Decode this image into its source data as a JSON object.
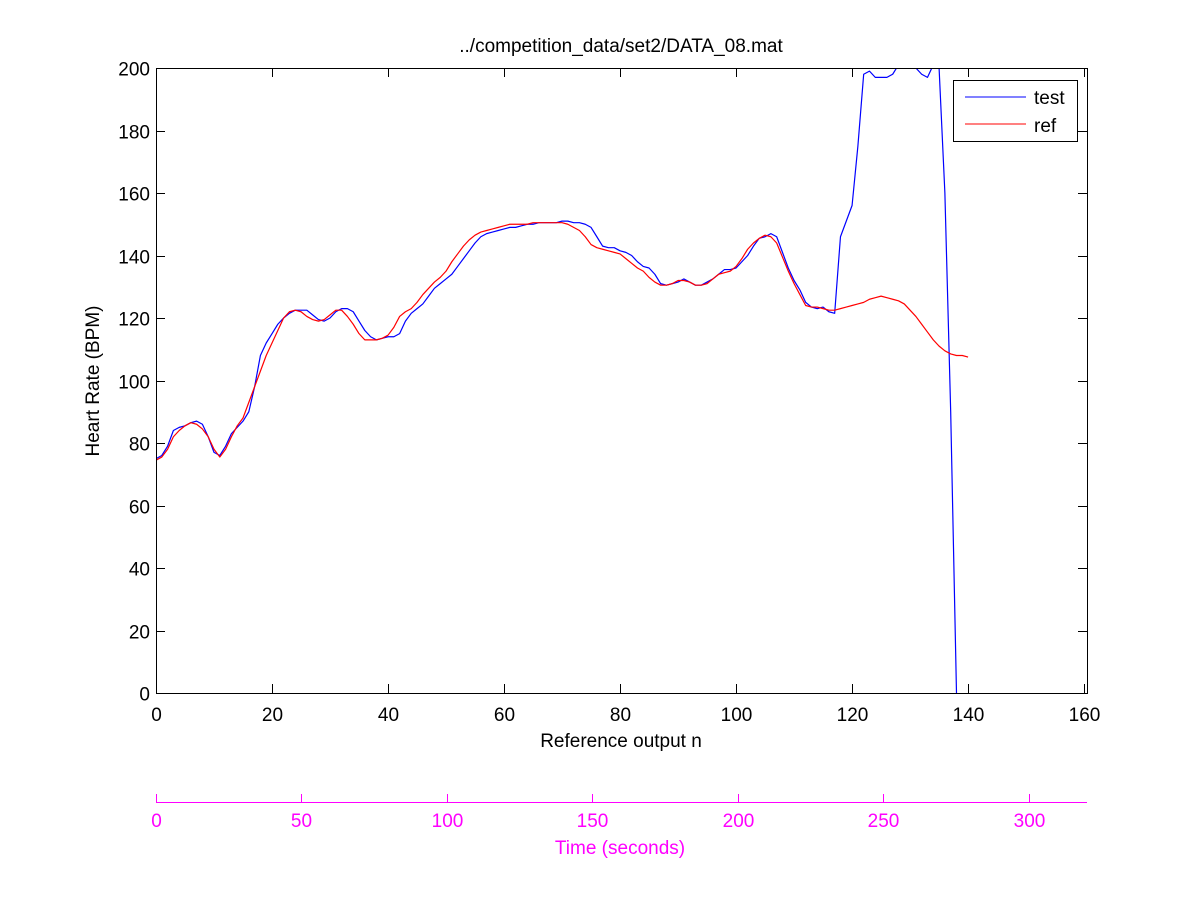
{
  "chart_data": {
    "type": "line",
    "title": "../competition_data/set2/DATA_08.mat",
    "xlabel": "Reference output n",
    "ylabel": "Heart Rate (BPM)",
    "xlim": [
      0,
      160.5
    ],
    "ylim": [
      0,
      200
    ],
    "xticks": [
      0,
      20,
      40,
      60,
      80,
      100,
      120,
      140,
      160
    ],
    "yticks": [
      0,
      20,
      40,
      60,
      80,
      100,
      120,
      140,
      160,
      180,
      200
    ],
    "grid": false,
    "legend": {
      "placement": "top-right",
      "entries": [
        "test",
        "ref"
      ]
    },
    "series": [
      {
        "name": "test",
        "color": "#0000ff",
        "points": [
          [
            0,
            75
          ],
          [
            1,
            76
          ],
          [
            2,
            79
          ],
          [
            3,
            84
          ],
          [
            4,
            85
          ],
          [
            5,
            85.5
          ],
          [
            6,
            86.5
          ],
          [
            7,
            87
          ],
          [
            8,
            86
          ],
          [
            9,
            82
          ],
          [
            10,
            77
          ],
          [
            11,
            76
          ],
          [
            12,
            79
          ],
          [
            13,
            83
          ],
          [
            14,
            85
          ],
          [
            15,
            87
          ],
          [
            16,
            90
          ],
          [
            17,
            98
          ],
          [
            18,
            108
          ],
          [
            19,
            112
          ],
          [
            20,
            115
          ],
          [
            21,
            118
          ],
          [
            22,
            120
          ],
          [
            23,
            121.5
          ],
          [
            24,
            122.5
          ],
          [
            25,
            122.5
          ],
          [
            26,
            122.5
          ],
          [
            27,
            121
          ],
          [
            28,
            119.5
          ],
          [
            29,
            119
          ],
          [
            30,
            120
          ],
          [
            31,
            122
          ],
          [
            32,
            123
          ],
          [
            33,
            123
          ],
          [
            34,
            122
          ],
          [
            35,
            119
          ],
          [
            36,
            116
          ],
          [
            37,
            114
          ],
          [
            38,
            113
          ],
          [
            39,
            113.5
          ],
          [
            40,
            114
          ],
          [
            41,
            114
          ],
          [
            42,
            115
          ],
          [
            43,
            119
          ],
          [
            44,
            121.5
          ],
          [
            45,
            123
          ],
          [
            46,
            124.5
          ],
          [
            47,
            127
          ],
          [
            48,
            129.5
          ],
          [
            49,
            131
          ],
          [
            50,
            132.5
          ],
          [
            51,
            134
          ],
          [
            52,
            136.5
          ],
          [
            53,
            139
          ],
          [
            54,
            141.5
          ],
          [
            55,
            144
          ],
          [
            56,
            146
          ],
          [
            57,
            147
          ],
          [
            58,
            147.5
          ],
          [
            59,
            148
          ],
          [
            60,
            148.5
          ],
          [
            61,
            149
          ],
          [
            62,
            149
          ],
          [
            63,
            149.5
          ],
          [
            64,
            150
          ],
          [
            65,
            150
          ],
          [
            66,
            150.5
          ],
          [
            67,
            150.5
          ],
          [
            68,
            150.5
          ],
          [
            69,
            150.5
          ],
          [
            70,
            151
          ],
          [
            71,
            151
          ],
          [
            72,
            150.5
          ],
          [
            73,
            150.5
          ],
          [
            74,
            150
          ],
          [
            75,
            149
          ],
          [
            76,
            146
          ],
          [
            77,
            143
          ],
          [
            78,
            142.5
          ],
          [
            79,
            142.5
          ],
          [
            80,
            141.5
          ],
          [
            81,
            141
          ],
          [
            82,
            140
          ],
          [
            83,
            138
          ],
          [
            84,
            136.5
          ],
          [
            85,
            136
          ],
          [
            86,
            134
          ],
          [
            87,
            131
          ],
          [
            88,
            130.5
          ],
          [
            89,
            131
          ],
          [
            90,
            131.5
          ],
          [
            91,
            132.5
          ],
          [
            92,
            131.5
          ],
          [
            93,
            130.5
          ],
          [
            94,
            130.5
          ],
          [
            95,
            131.5
          ],
          [
            96,
            132.5
          ],
          [
            97,
            134
          ],
          [
            98,
            135.5
          ],
          [
            99,
            135.5
          ],
          [
            100,
            136
          ],
          [
            101,
            138
          ],
          [
            102,
            140
          ],
          [
            103,
            143
          ],
          [
            104,
            145.5
          ],
          [
            105,
            146
          ],
          [
            106,
            147
          ],
          [
            107,
            146
          ],
          [
            108,
            141
          ],
          [
            109,
            136
          ],
          [
            110,
            132
          ],
          [
            111,
            129
          ],
          [
            112,
            125
          ],
          [
            113,
            123.5
          ],
          [
            114,
            123
          ],
          [
            115,
            123.5
          ],
          [
            116,
            122
          ],
          [
            117,
            121.5
          ],
          [
            118,
            146
          ],
          [
            119,
            151
          ],
          [
            120,
            156
          ],
          [
            121,
            175
          ],
          [
            122,
            198
          ],
          [
            123,
            199
          ],
          [
            124,
            197
          ],
          [
            125,
            197
          ],
          [
            126,
            197
          ],
          [
            127,
            198
          ],
          [
            128,
            201
          ],
          [
            129,
            201
          ],
          [
            130,
            200
          ],
          [
            131,
            200
          ],
          [
            132,
            198
          ],
          [
            133,
            197
          ],
          [
            134,
            201
          ],
          [
            135,
            200
          ],
          [
            136,
            160
          ],
          [
            137,
            90
          ],
          [
            138,
            0
          ]
        ]
      },
      {
        "name": "ref",
        "color": "#ff0000",
        "points": [
          [
            0,
            74.5
          ],
          [
            1,
            75.5
          ],
          [
            2,
            78
          ],
          [
            3,
            82
          ],
          [
            4,
            84
          ],
          [
            5,
            85.5
          ],
          [
            6,
            86.5
          ],
          [
            7,
            86
          ],
          [
            8,
            84.5
          ],
          [
            9,
            82
          ],
          [
            10,
            78
          ],
          [
            11,
            75.5
          ],
          [
            12,
            78
          ],
          [
            13,
            82
          ],
          [
            14,
            85.5
          ],
          [
            15,
            88
          ],
          [
            16,
            93
          ],
          [
            17,
            98
          ],
          [
            18,
            103
          ],
          [
            19,
            108
          ],
          [
            20,
            112
          ],
          [
            21,
            116
          ],
          [
            22,
            120
          ],
          [
            23,
            122
          ],
          [
            24,
            122.5
          ],
          [
            25,
            122
          ],
          [
            26,
            120.5
          ],
          [
            27,
            119.5
          ],
          [
            28,
            119
          ],
          [
            29,
            119.5
          ],
          [
            30,
            121
          ],
          [
            31,
            122.5
          ],
          [
            32,
            122.5
          ],
          [
            33,
            120.5
          ],
          [
            34,
            118
          ],
          [
            35,
            115
          ],
          [
            36,
            113
          ],
          [
            37,
            113
          ],
          [
            38,
            113
          ],
          [
            39,
            113.5
          ],
          [
            40,
            114.5
          ],
          [
            41,
            117
          ],
          [
            42,
            120.5
          ],
          [
            43,
            122
          ],
          [
            44,
            123
          ],
          [
            45,
            125
          ],
          [
            46,
            127.5
          ],
          [
            47,
            129.5
          ],
          [
            48,
            131.5
          ],
          [
            49,
            133
          ],
          [
            50,
            135
          ],
          [
            51,
            138
          ],
          [
            52,
            140.5
          ],
          [
            53,
            143
          ],
          [
            54,
            145
          ],
          [
            55,
            146.5
          ],
          [
            56,
            147.5
          ],
          [
            57,
            148
          ],
          [
            58,
            148.5
          ],
          [
            59,
            149
          ],
          [
            60,
            149.5
          ],
          [
            61,
            150
          ],
          [
            62,
            150
          ],
          [
            63,
            150
          ],
          [
            64,
            150
          ],
          [
            65,
            150.5
          ],
          [
            66,
            150.5
          ],
          [
            67,
            150.5
          ],
          [
            68,
            150.5
          ],
          [
            69,
            150.5
          ],
          [
            70,
            150.5
          ],
          [
            71,
            150
          ],
          [
            72,
            149
          ],
          [
            73,
            148
          ],
          [
            74,
            146
          ],
          [
            75,
            143.5
          ],
          [
            76,
            142.5
          ],
          [
            77,
            142
          ],
          [
            78,
            141.5
          ],
          [
            79,
            141
          ],
          [
            80,
            140.5
          ],
          [
            81,
            139
          ],
          [
            82,
            137.5
          ],
          [
            83,
            136
          ],
          [
            84,
            135
          ],
          [
            85,
            133
          ],
          [
            86,
            131.5
          ],
          [
            87,
            130.5
          ],
          [
            88,
            130.5
          ],
          [
            89,
            131
          ],
          [
            90,
            132
          ],
          [
            91,
            132
          ],
          [
            92,
            131.5
          ],
          [
            93,
            130.5
          ],
          [
            94,
            130.5
          ],
          [
            95,
            131
          ],
          [
            96,
            132.5
          ],
          [
            97,
            134
          ],
          [
            98,
            134.5
          ],
          [
            99,
            135
          ],
          [
            100,
            136.5
          ],
          [
            101,
            139
          ],
          [
            102,
            142
          ],
          [
            103,
            144
          ],
          [
            104,
            145.5
          ],
          [
            105,
            146.5
          ],
          [
            106,
            146
          ],
          [
            107,
            144
          ],
          [
            108,
            139.5
          ],
          [
            109,
            135
          ],
          [
            110,
            131
          ],
          [
            111,
            127.5
          ],
          [
            112,
            124
          ],
          [
            113,
            123.5
          ],
          [
            114,
            123.5
          ],
          [
            115,
            123
          ],
          [
            116,
            122.5
          ],
          [
            117,
            122.5
          ],
          [
            118,
            123
          ],
          [
            119,
            123.5
          ],
          [
            120,
            124
          ],
          [
            121,
            124.5
          ],
          [
            122,
            125
          ],
          [
            123,
            126
          ],
          [
            124,
            126.5
          ],
          [
            125,
            127
          ],
          [
            126,
            126.5
          ],
          [
            127,
            126
          ],
          [
            128,
            125.5
          ],
          [
            129,
            124.5
          ],
          [
            130,
            122.5
          ],
          [
            131,
            120.5
          ],
          [
            132,
            118
          ],
          [
            133,
            115.5
          ],
          [
            134,
            113
          ],
          [
            135,
            111
          ],
          [
            136,
            109.5
          ],
          [
            137,
            108.5
          ],
          [
            138,
            108
          ],
          [
            139,
            108
          ],
          [
            140,
            107.5
          ]
        ]
      }
    ],
    "secondary_axis": {
      "label": "Time (seconds)",
      "color": "#ff00ff",
      "range": [
        0,
        320
      ],
      "ticks": [
        0,
        50,
        100,
        150,
        200,
        250,
        300
      ]
    }
  }
}
